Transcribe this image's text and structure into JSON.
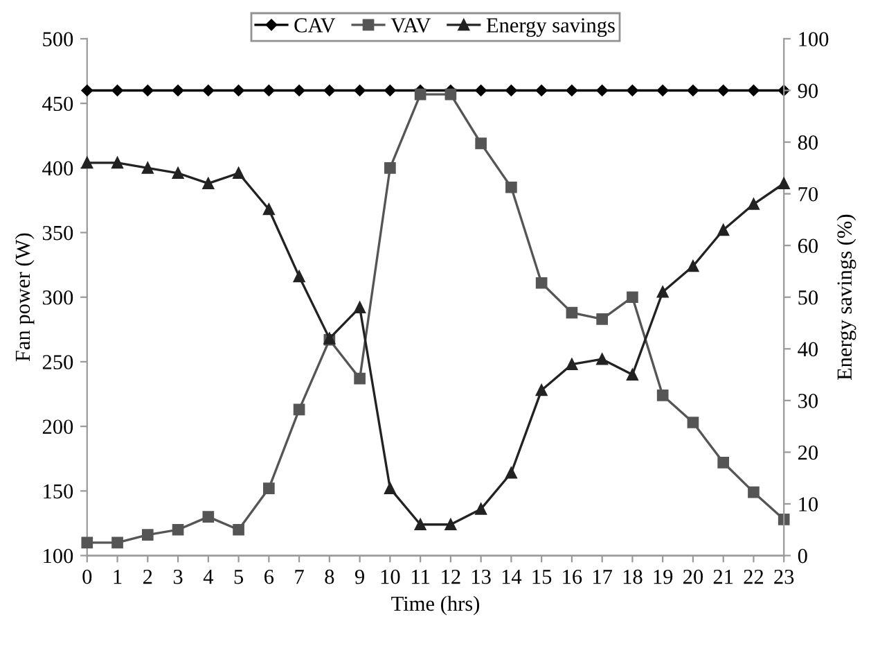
{
  "chart_data": {
    "type": "line",
    "xlabel": "Time (hrs)",
    "ylabel": "Fan power (W)",
    "y2label": "Energy savings (%)",
    "x": [
      0,
      1,
      2,
      3,
      4,
      5,
      6,
      7,
      8,
      9,
      10,
      11,
      12,
      13,
      14,
      15,
      16,
      17,
      18,
      19,
      20,
      21,
      22,
      23
    ],
    "xlim": [
      0,
      23
    ],
    "xticks": [
      0,
      1,
      2,
      3,
      4,
      5,
      6,
      7,
      8,
      9,
      10,
      11,
      12,
      13,
      14,
      15,
      16,
      17,
      18,
      19,
      20,
      21,
      22,
      23
    ],
    "ylim": [
      100,
      500
    ],
    "yticks": [
      100,
      150,
      200,
      250,
      300,
      350,
      400,
      450,
      500
    ],
    "y2lim": [
      0,
      100
    ],
    "y2ticks": [
      0,
      10,
      20,
      30,
      40,
      50,
      60,
      70,
      80,
      90,
      100
    ],
    "grid": false,
    "legend": "top",
    "series": [
      {
        "name": "CAV",
        "color": "#000000",
        "marker": "diamond",
        "values": [
          460,
          460,
          460,
          460,
          460,
          460,
          460,
          460,
          460,
          460,
          460,
          460,
          460,
          460,
          460,
          460,
          460,
          460,
          460,
          460,
          460,
          460,
          460,
          460
        ]
      },
      {
        "name": "VAV",
        "color": "#555555",
        "marker": "square",
        "values": [
          110,
          110,
          116,
          120,
          130,
          120,
          152,
          213,
          267,
          237,
          400,
          457,
          457,
          419,
          385,
          311,
          288,
          283,
          300,
          224,
          203,
          172,
          149,
          128
        ]
      },
      {
        "name": "Energy savings",
        "color": "#222222",
        "marker": "triangle",
        "axis": "y2",
        "values": [
          76,
          76,
          75,
          74,
          72,
          74,
          67,
          54,
          42,
          48,
          13,
          6,
          6,
          9,
          16,
          32,
          37,
          38,
          35,
          51,
          56,
          63,
          68,
          72
        ]
      }
    ]
  }
}
